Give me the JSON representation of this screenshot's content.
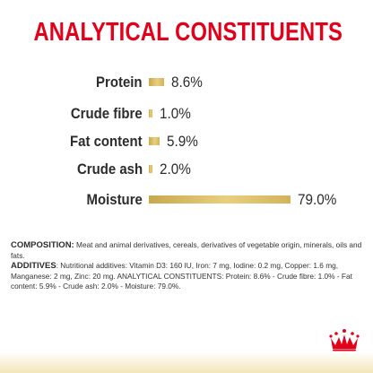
{
  "title": "ANALYTICAL CONSTITUENTS",
  "constituents": [
    {
      "label": "Protein",
      "value_text": "8.6%",
      "value": 8.6
    },
    {
      "label": "Crude fibre",
      "value_text": "1.0%",
      "value": 1.0
    },
    {
      "label": "Fat content",
      "value_text": "5.9%",
      "value": 5.9
    },
    {
      "label": "Crude ash",
      "value_text": "2.0%",
      "value": 2.0
    },
    {
      "label": "Moisture",
      "value_text": "79.0%",
      "value": 79.0
    }
  ],
  "composition": {
    "heading": "COMPOSITION:",
    "text": " Meat and animal derivatives, cereals, derivatives of vegetable origin, minerals, oils and fats."
  },
  "additives": {
    "heading": "ADDITIVES",
    "text": ": Nutritional additives: Vitamin D3: 160 IU, Iron: 7 mg, Iodine: 0.2 mg, Copper: 1.6 mg, Manganese: 2 mg, Zinc: 20 mg. ANALYTICAL CONSTITUENTS: Protein: 8.6% - Crude fibre: 1.0% - Fat content: 5.9% - Crude ash: 2.0% - Moisture: 79.0%."
  },
  "colors": {
    "title": "#e2001a",
    "bar": "#d9bc63",
    "logo": "#e2001a"
  },
  "logo_icon": "crown-icon"
}
